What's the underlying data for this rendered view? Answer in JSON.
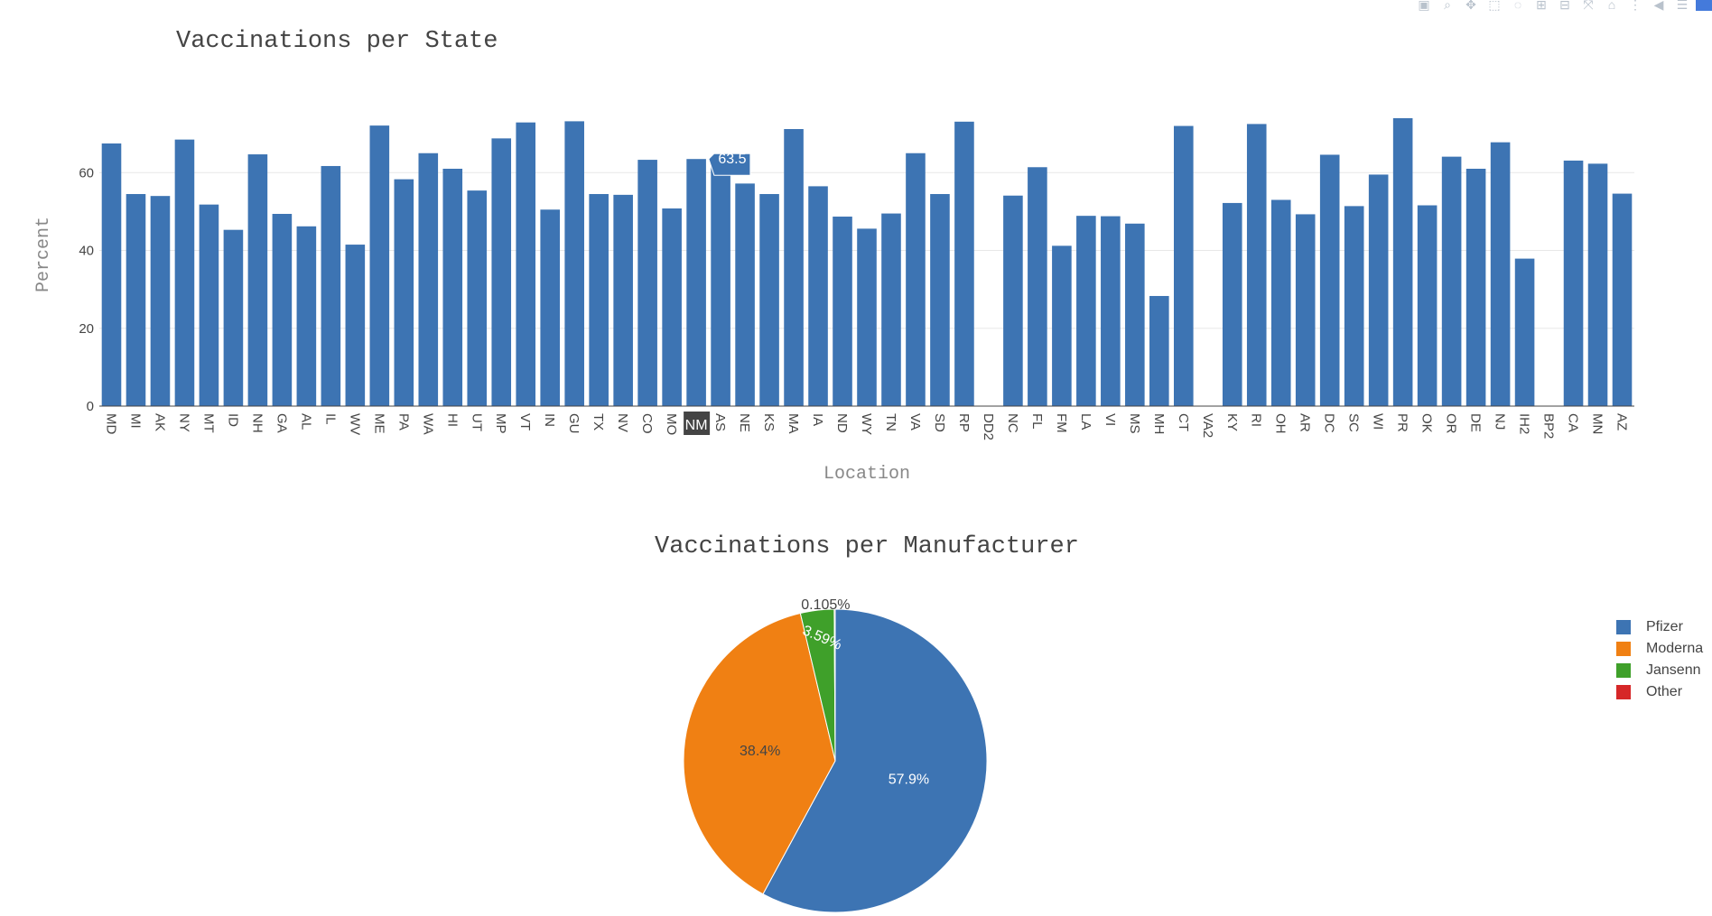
{
  "toolbar": {
    "buttons": [
      {
        "name": "camera-icon",
        "glyph": "▣"
      },
      {
        "name": "zoom-icon",
        "glyph": "⌕"
      },
      {
        "name": "pan-icon",
        "glyph": "✥"
      },
      {
        "name": "box-select-icon",
        "glyph": "⬚"
      },
      {
        "name": "lasso-select-icon",
        "glyph": "◌"
      },
      {
        "name": "zoom-in-icon",
        "glyph": "⊞"
      },
      {
        "name": "zoom-out-icon",
        "glyph": "⊟"
      },
      {
        "name": "autoscale-icon",
        "glyph": "⤧"
      },
      {
        "name": "reset-axes-icon",
        "glyph": "⌂"
      },
      {
        "name": "spike-lines-icon",
        "glyph": "⋮"
      },
      {
        "name": "hover-closest-icon",
        "glyph": "◀"
      },
      {
        "name": "hover-compare-icon",
        "glyph": "☰"
      }
    ],
    "logo_name": "plotly-logo-icon"
  },
  "chart_data": [
    {
      "type": "bar",
      "title": "Vaccinations per State",
      "xlabel": "Location",
      "ylabel": "Percent",
      "ylim": [
        0,
        77
      ],
      "yticks": [
        0,
        20,
        40,
        60
      ],
      "grid": true,
      "bar_color": "#3d74b3",
      "categories": [
        "MD",
        "MI",
        "AK",
        "NY",
        "MT",
        "ID",
        "NH",
        "GA",
        "AL",
        "IL",
        "WV",
        "ME",
        "PA",
        "WA",
        "HI",
        "UT",
        "MP",
        "VT",
        "IN",
        "GU",
        "TX",
        "NV",
        "CO",
        "MO",
        "NM",
        "AS",
        "NE",
        "KS",
        "MA",
        "IA",
        "ND",
        "WY",
        "TN",
        "VA",
        "SD",
        "RP",
        "DD2",
        "NC",
        "FL",
        "FM",
        "LA",
        "VI",
        "MS",
        "MH",
        "CT",
        "VA2",
        "KY",
        "RI",
        "OH",
        "AR",
        "DC",
        "SC",
        "WI",
        "PR",
        "OK",
        "OR",
        "DE",
        "NJ",
        "IH2",
        "BP2",
        "CA",
        "MN",
        "AZ"
      ],
      "values": [
        67.5,
        54.5,
        54.0,
        68.5,
        51.8,
        45.3,
        64.7,
        49.4,
        46.2,
        61.7,
        41.5,
        72.1,
        58.3,
        65.0,
        61.0,
        55.4,
        68.8,
        72.9,
        50.5,
        73.2,
        54.5,
        54.3,
        63.3,
        50.8,
        63.5,
        62.0,
        57.2,
        54.5,
        71.2,
        56.5,
        48.7,
        45.6,
        49.5,
        65.0,
        54.5,
        73.1,
        0,
        54.1,
        61.4,
        41.2,
        48.9,
        48.8,
        46.9,
        28.3,
        72.0,
        0,
        52.2,
        72.5,
        53.0,
        49.3,
        64.6,
        51.4,
        59.5,
        74.0,
        51.6,
        64.1,
        61.0,
        67.8,
        37.9,
        0,
        63.1,
        62.3,
        54.6
      ],
      "hover": {
        "category": "NM",
        "value_label": "63.5"
      }
    },
    {
      "type": "pie",
      "title": "Vaccinations per Manufacturer",
      "legend_position": "right",
      "labels": [
        "Pfizer",
        "Moderna",
        "Jansenn",
        "Other"
      ],
      "values": [
        57.9,
        38.4,
        3.59,
        0.105
      ],
      "text_labels": [
        "57.9%",
        "38.4%",
        "3.59%",
        "0.105%"
      ],
      "colors": [
        "#3d74b3",
        "#f08013",
        "#3fa02a",
        "#d62728"
      ]
    }
  ]
}
